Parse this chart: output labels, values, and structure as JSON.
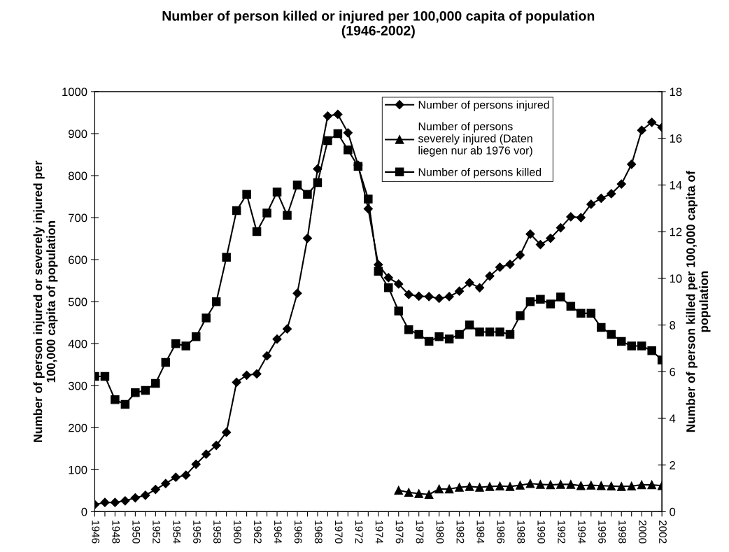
{
  "chart_data": {
    "type": "line",
    "title": "Number of person killed or injured per 100,000 capita of population\n(1946-2002)",
    "ylabel": "Number of person injured or severely injured per\n100,000 capita of population",
    "y2label": "Number of person killed per 100,000 capita of\npopulation",
    "x": [
      1946,
      1947,
      1948,
      1949,
      1950,
      1951,
      1952,
      1953,
      1954,
      1955,
      1956,
      1957,
      1958,
      1959,
      1960,
      1961,
      1962,
      1963,
      1964,
      1965,
      1966,
      1967,
      1968,
      1969,
      1970,
      1971,
      1972,
      1973,
      1974,
      1975,
      1976,
      1977,
      1978,
      1979,
      1980,
      1981,
      1982,
      1983,
      1984,
      1985,
      1986,
      1987,
      1988,
      1989,
      1990,
      1991,
      1992,
      1993,
      1994,
      1995,
      1996,
      1997,
      1998,
      1999,
      2000,
      2001,
      2002
    ],
    "series": [
      {
        "name": "Number of persons injured",
        "color": "#000000",
        "marker": "diamond",
        "values": [
          17,
          22,
          22,
          26,
          33,
          39,
          53,
          67,
          82,
          87,
          113,
          137,
          158,
          189,
          308,
          325,
          328,
          371,
          411,
          435,
          520,
          651,
          816,
          942,
          946,
          902,
          825,
          721,
          588,
          557,
          542,
          517,
          513,
          512,
          508,
          512,
          525,
          545,
          533,
          561,
          582,
          589,
          611,
          661,
          636,
          651,
          676,
          702,
          700,
          732,
          746,
          757,
          780,
          827,
          908,
          927,
          915
        ]
      },
      {
        "name": "Number of persons severely injured (Daten liegen nur ab 1976 vor)",
        "color": "#000000",
        "marker": "triangle",
        "values": [
          null,
          null,
          null,
          null,
          null,
          null,
          null,
          null,
          null,
          null,
          null,
          null,
          null,
          null,
          null,
          null,
          null,
          null,
          null,
          null,
          null,
          null,
          null,
          null,
          null,
          null,
          null,
          null,
          null,
          null,
          51,
          46,
          43,
          41,
          54,
          54,
          58,
          60,
          58,
          60,
          61,
          60,
          63,
          67,
          65,
          64,
          65,
          65,
          62,
          63,
          62,
          61,
          60,
          61,
          64,
          64,
          62
        ]
      },
      {
        "name": "Number of persons killed",
        "color": "#000000",
        "marker": "square",
        "axis": "y2",
        "values": [
          5.8,
          5.8,
          4.8,
          4.6,
          5.1,
          5.2,
          5.5,
          6.4,
          7.2,
          7.1,
          7.5,
          8.3,
          9.0,
          10.9,
          12.9,
          13.6,
          12.0,
          12.8,
          13.7,
          12.7,
          14.0,
          13.6,
          14.1,
          15.9,
          16.2,
          15.5,
          14.8,
          13.4,
          10.3,
          9.6,
          8.6,
          7.8,
          7.6,
          7.3,
          7.5,
          7.4,
          7.6,
          8.0,
          7.7,
          7.7,
          7.7,
          7.6,
          8.4,
          9.0,
          9.1,
          8.9,
          9.2,
          8.8,
          8.5,
          8.5,
          7.9,
          7.6,
          7.3,
          7.1,
          7.1,
          6.9,
          6.5
        ]
      }
    ],
    "xlim": [
      1946,
      2002
    ],
    "xticks": [
      1946,
      {
        "value": 1947,
        "label": null
      },
      1948,
      {
        "value": 1949,
        "label": null
      },
      1950,
      {
        "value": 1951,
        "label": null
      },
      1952,
      {
        "value": 1953,
        "label": null
      },
      1954,
      {
        "value": 1955,
        "label": null
      },
      1956,
      {
        "value": 1957,
        "label": null
      },
      1958,
      {
        "value": 1959,
        "label": null
      },
      1960,
      {
        "value": 1961,
        "label": null
      },
      1962,
      {
        "value": 1963,
        "label": null
      },
      1964,
      {
        "value": 1965,
        "label": null
      },
      1966,
      {
        "value": 1967,
        "label": null
      },
      1968,
      {
        "value": 1969,
        "label": null
      },
      1970,
      {
        "value": 1971,
        "label": null
      },
      1972,
      {
        "value": 1973,
        "label": null
      },
      1974,
      {
        "value": 1975,
        "label": null
      },
      1976,
      {
        "value": 1977,
        "label": null
      },
      1978,
      {
        "value": 1979,
        "label": null
      },
      1980,
      {
        "value": 1981,
        "label": null
      },
      1982,
      {
        "value": 1983,
        "label": null
      },
      1984,
      {
        "value": 1985,
        "label": null
      },
      1986,
      {
        "value": 1987,
        "label": null
      },
      1988,
      {
        "value": 1989,
        "label": null
      },
      1990,
      {
        "value": 1991,
        "label": null
      },
      1992,
      {
        "value": 1993,
        "label": null
      },
      1994,
      {
        "value": 1995,
        "label": null
      },
      1996,
      {
        "value": 1997,
        "label": null
      },
      1998,
      {
        "value": 1999,
        "label": null
      },
      2000,
      {
        "value": 2001,
        "label": null
      },
      2002
    ],
    "ylim": [
      0,
      1000
    ],
    "yticks": [
      0,
      100,
      200,
      300,
      400,
      500,
      600,
      700,
      800,
      900,
      1000
    ],
    "y2lim": [
      0,
      18
    ],
    "y2ticks": [
      0,
      2,
      4,
      6,
      8,
      10,
      12,
      14,
      16,
      18
    ],
    "line_style": "solid",
    "grid": false,
    "legend": "top"
  }
}
